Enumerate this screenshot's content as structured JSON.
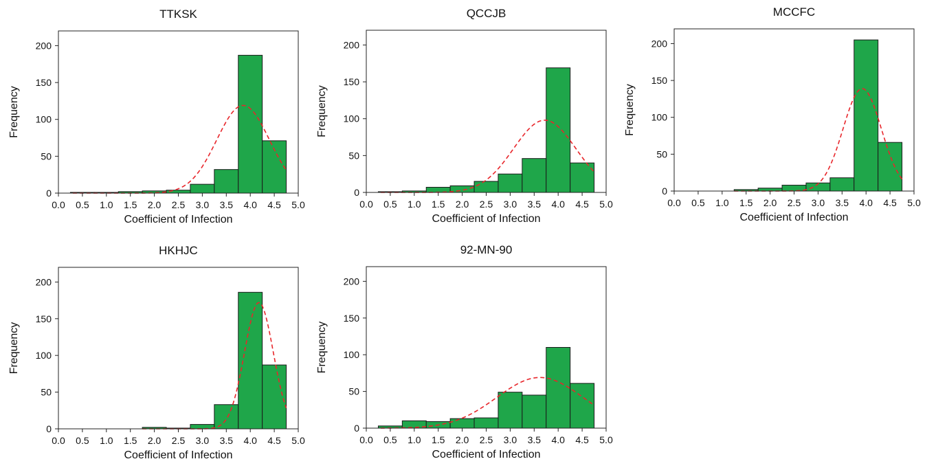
{
  "chart_data": [
    {
      "type": "bar",
      "title": "TTKSK",
      "xlabel": "Coefficient of Infection",
      "ylabel": "Frequency",
      "xlim": [
        0,
        5
      ],
      "ylim": [
        0,
        220
      ],
      "xticks": [
        "0.0",
        "0.5",
        "1.0",
        "1.5",
        "2.0",
        "2.5",
        "3.0",
        "3.5",
        "4.0",
        "4.5",
        "5.0"
      ],
      "yticks": [
        "0",
        "50",
        "100",
        "150",
        "200"
      ],
      "bin_width": 0.5,
      "bins": [
        {
          "x": 0.5,
          "value": 1
        },
        {
          "x": 1.0,
          "value": 1
        },
        {
          "x": 1.5,
          "value": 2
        },
        {
          "x": 2.0,
          "value": 3
        },
        {
          "x": 2.5,
          "value": 4
        },
        {
          "x": 3.0,
          "value": 12
        },
        {
          "x": 3.5,
          "value": 32
        },
        {
          "x": 4.0,
          "value": 187
        },
        {
          "x": 4.5,
          "value": 71
        }
      ],
      "fit_curve": {
        "style": "dashed",
        "mean": 3.85,
        "sd": 0.55,
        "peak": 119,
        "x_start": 0.3,
        "x_end": 4.75
      },
      "grid": false,
      "legend": "none"
    },
    {
      "type": "bar",
      "title": "QCCJB",
      "xlabel": "Coefficient of Infection",
      "ylabel": "Frequency",
      "xlim": [
        0,
        5
      ],
      "ylim": [
        0,
        220
      ],
      "xticks": [
        "0.0",
        "0.5",
        "1.0",
        "1.5",
        "2.0",
        "2.5",
        "3.0",
        "3.5",
        "4.0",
        "4.5",
        "5.0"
      ],
      "yticks": [
        "0",
        "50",
        "100",
        "150",
        "200"
      ],
      "bin_width": 0.5,
      "bins": [
        {
          "x": 0.5,
          "value": 1
        },
        {
          "x": 1.0,
          "value": 2
        },
        {
          "x": 1.5,
          "value": 7
        },
        {
          "x": 2.0,
          "value": 9
        },
        {
          "x": 2.5,
          "value": 15
        },
        {
          "x": 3.0,
          "value": 25
        },
        {
          "x": 3.5,
          "value": 46
        },
        {
          "x": 4.0,
          "value": 169
        },
        {
          "x": 4.5,
          "value": 40
        }
      ],
      "fit_curve": {
        "style": "dashed",
        "mean": 3.72,
        "sd": 0.65,
        "peak": 98,
        "x_start": 0.3,
        "x_end": 4.75
      },
      "grid": false,
      "legend": "none"
    },
    {
      "type": "bar",
      "title": "MCCFC",
      "xlabel": "Coefficient of Infection",
      "ylabel": "Frequency",
      "xlim": [
        0,
        5
      ],
      "ylim": [
        0,
        220
      ],
      "xticks": [
        "0.0",
        "0.5",
        "1.0",
        "1.5",
        "2.0",
        "2.5",
        "3.0",
        "3.5",
        "4.0",
        "4.5",
        "5.0"
      ],
      "yticks": [
        "0",
        "50",
        "100",
        "150",
        "200"
      ],
      "bin_width": 0.5,
      "bins": [
        {
          "x": 1.5,
          "value": 2
        },
        {
          "x": 2.0,
          "value": 4
        },
        {
          "x": 2.5,
          "value": 8
        },
        {
          "x": 3.0,
          "value": 11
        },
        {
          "x": 3.5,
          "value": 18
        },
        {
          "x": 4.0,
          "value": 205
        },
        {
          "x": 4.5,
          "value": 66
        }
      ],
      "fit_curve": {
        "style": "dashed",
        "mean": 3.92,
        "sd": 0.4,
        "peak": 139,
        "x_start": 1.25,
        "x_end": 4.75
      },
      "grid": false,
      "legend": "none"
    },
    {
      "type": "bar",
      "title": "HKHJC",
      "xlabel": "Coefficient of Infection",
      "ylabel": "Frequency",
      "xlim": [
        0,
        5
      ],
      "ylim": [
        0,
        220
      ],
      "xticks": [
        "0.0",
        "0.5",
        "1.0",
        "1.5",
        "2.0",
        "2.5",
        "3.0",
        "3.5",
        "4.0",
        "4.5",
        "5.0"
      ],
      "yticks": [
        "0",
        "50",
        "100",
        "150",
        "200"
      ],
      "bin_width": 0.5,
      "bins": [
        {
          "x": 2.0,
          "value": 2
        },
        {
          "x": 2.5,
          "value": 1
        },
        {
          "x": 3.0,
          "value": 6
        },
        {
          "x": 3.5,
          "value": 33
        },
        {
          "x": 4.0,
          "value": 186
        },
        {
          "x": 4.5,
          "value": 87
        }
      ],
      "fit_curve": {
        "style": "dashed",
        "mean": 4.18,
        "sd": 0.3,
        "peak": 172,
        "x_start": 1.75,
        "x_end": 4.75
      },
      "grid": false,
      "legend": "none"
    },
    {
      "type": "bar",
      "title": "92-MN-90",
      "xlabel": "Coefficient of Infection",
      "ylabel": "Frequency",
      "xlim": [
        0,
        5
      ],
      "ylim": [
        0,
        220
      ],
      "xticks": [
        "0.0",
        "0.5",
        "1.0",
        "1.5",
        "2.0",
        "2.5",
        "3.0",
        "3.5",
        "4.0",
        "4.5",
        "5.0"
      ],
      "yticks": [
        "0",
        "50",
        "100",
        "150",
        "200"
      ],
      "bin_width": 0.5,
      "bins": [
        {
          "x": 0.5,
          "value": 3
        },
        {
          "x": 1.0,
          "value": 10
        },
        {
          "x": 1.5,
          "value": 9
        },
        {
          "x": 2.0,
          "value": 13
        },
        {
          "x": 2.5,
          "value": 14
        },
        {
          "x": 3.0,
          "value": 49
        },
        {
          "x": 3.5,
          "value": 45
        },
        {
          "x": 4.0,
          "value": 110
        },
        {
          "x": 4.5,
          "value": 61
        }
      ],
      "fit_curve": {
        "style": "dashed",
        "mean": 3.62,
        "sd": 0.9,
        "peak": 69,
        "x_start": 0.3,
        "x_end": 4.75
      },
      "grid": false,
      "legend": "none"
    }
  ],
  "colors": {
    "bar_fill": "#1fa64a",
    "bar_stroke": "#1a1a1a",
    "fit_curve": "#e8262b",
    "axis": "#222222",
    "text": "#111111"
  }
}
